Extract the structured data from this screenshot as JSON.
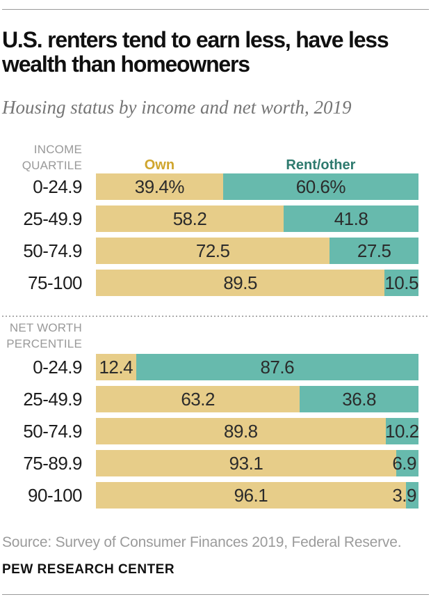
{
  "header": {
    "title": "U.S. renters tend to earn less, have less wealth than homeowners",
    "subtitle": "Housing status by income and net worth, 2019"
  },
  "legend": {
    "own": "Own",
    "rent": "Rent/other"
  },
  "colors": {
    "own_bar": "#E7CD89",
    "rent_bar": "#67BAAD",
    "own_label": "#CFA52D",
    "rent_label": "#2E7A6E"
  },
  "chart_data": [
    {
      "type": "bar",
      "orientation": "horizontal",
      "stacked": true,
      "show_legend": true,
      "group_label_lines": [
        "INCOME",
        "QUARTILE"
      ],
      "categories": [
        "0-24.9",
        "25-49.9",
        "50-74.9",
        "75-100"
      ],
      "series": [
        {
          "name": "Own",
          "values": [
            39.4,
            58.2,
            72.5,
            89.5
          ]
        },
        {
          "name": "Rent/other",
          "values": [
            60.6,
            41.8,
            27.5,
            10.5
          ]
        }
      ],
      "bar_labels": [
        [
          "39.4%",
          "60.6%"
        ],
        [
          "58.2",
          "41.8"
        ],
        [
          "72.5",
          "27.5"
        ],
        [
          "89.5",
          "10.5"
        ]
      ],
      "xlim": [
        0,
        100
      ]
    },
    {
      "type": "bar",
      "orientation": "horizontal",
      "stacked": true,
      "show_legend": false,
      "group_label_lines": [
        "NET WORTH",
        "PERCENTILE"
      ],
      "categories": [
        "0-24.9",
        "25-49.9",
        "50-74.9",
        "75-89.9",
        "90-100"
      ],
      "series": [
        {
          "name": "Own",
          "values": [
            12.4,
            63.2,
            89.8,
            93.1,
            96.1
          ]
        },
        {
          "name": "Rent/other",
          "values": [
            87.6,
            36.8,
            10.2,
            6.9,
            3.9
          ]
        }
      ],
      "bar_labels": [
        [
          "12.4",
          "87.6"
        ],
        [
          "63.2",
          "36.8"
        ],
        [
          "89.8",
          "10.2"
        ],
        [
          "93.1",
          "6.9"
        ],
        [
          "96.1",
          "3.9"
        ]
      ],
      "xlim": [
        0,
        100
      ]
    }
  ],
  "footer": {
    "source": "Source: Survey of Consumer Finances 2019, Federal Reserve.",
    "brand": "PEW RESEARCH CENTER"
  }
}
